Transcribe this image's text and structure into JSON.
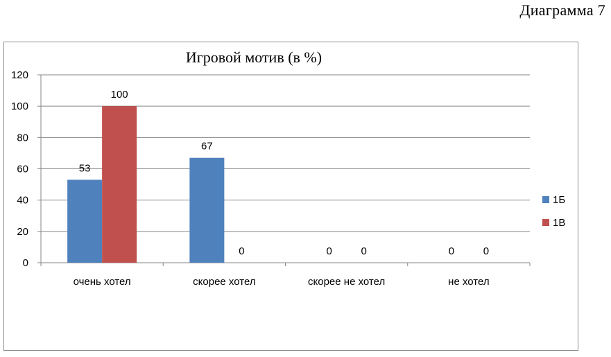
{
  "page": {
    "diagram_label": "Диаграмма  7"
  },
  "chart_data": {
    "type": "bar",
    "title": "Игровой мотив (в %)",
    "xlabel": "",
    "ylabel": "",
    "categories": [
      "очень хотел",
      "скорее хотел",
      "скорее не хотел",
      "не хотел"
    ],
    "series": [
      {
        "name": "1Б",
        "color": "#4f81bd",
        "values": [
          53,
          67,
          0,
          0
        ]
      },
      {
        "name": "1В",
        "color": "#c0504d",
        "values": [
          100,
          0,
          0,
          0
        ]
      }
    ],
    "ylim": [
      0,
      120
    ],
    "yticks": [
      0,
      20,
      40,
      60,
      80,
      100,
      120
    ],
    "grid": true,
    "legend_position": "right"
  }
}
